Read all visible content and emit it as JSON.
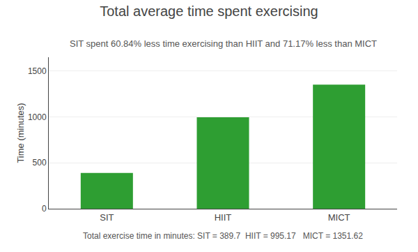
{
  "chart_data": {
    "type": "bar",
    "title": "Total average time spent exercising",
    "subtitle": "SIT spent 60.84% less time exercising than HIIT and 71.17% less than MICT",
    "ylabel": "Time (minutes)",
    "categories": [
      "SIT",
      "HIIT",
      "MICT"
    ],
    "values": [
      389.7,
      995.17,
      1351.62
    ],
    "color": "#2e9e32",
    "ylim": [
      0,
      1650
    ],
    "yticks": [
      0,
      500,
      1000,
      1500
    ],
    "grid": true,
    "footer": "Total exercise time in minutes: SIT = 389.7  HIIT = 995.17   MICT = 1351.62"
  }
}
